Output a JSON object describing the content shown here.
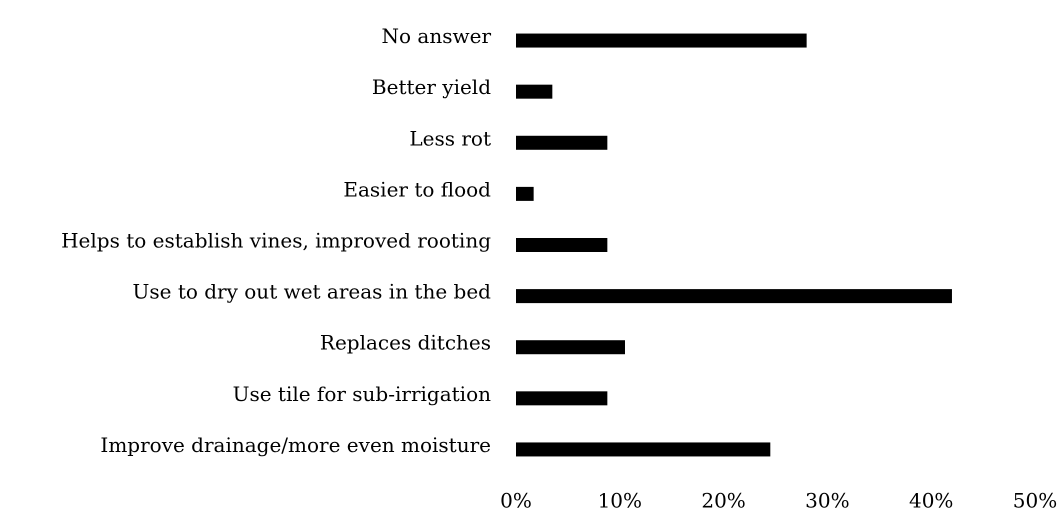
{
  "chart_data": {
    "type": "bar",
    "orientation": "horizontal",
    "categories": [
      "No answer",
      "Better yield",
      "Less rot",
      "Easier to flood",
      "Helps to establish vines, improved rooting",
      "Use to dry out wet areas in the bed",
      "Replaces ditches",
      "Use tile for sub-irrigation",
      "Improve drainage/more even moisture"
    ],
    "values": [
      28,
      3.5,
      8.8,
      1.7,
      8.8,
      42,
      10.5,
      8.8,
      24.5
    ],
    "color": "#000000",
    "xlim": [
      0,
      50
    ],
    "xticks": [
      {
        "value": 0,
        "label": "0%"
      },
      {
        "value": 10,
        "label": "10%"
      },
      {
        "value": 20,
        "label": "20%"
      },
      {
        "value": 30,
        "label": "30%"
      },
      {
        "value": 40,
        "label": "40%"
      },
      {
        "value": 50,
        "label": "50%"
      }
    ],
    "grid": false
  }
}
